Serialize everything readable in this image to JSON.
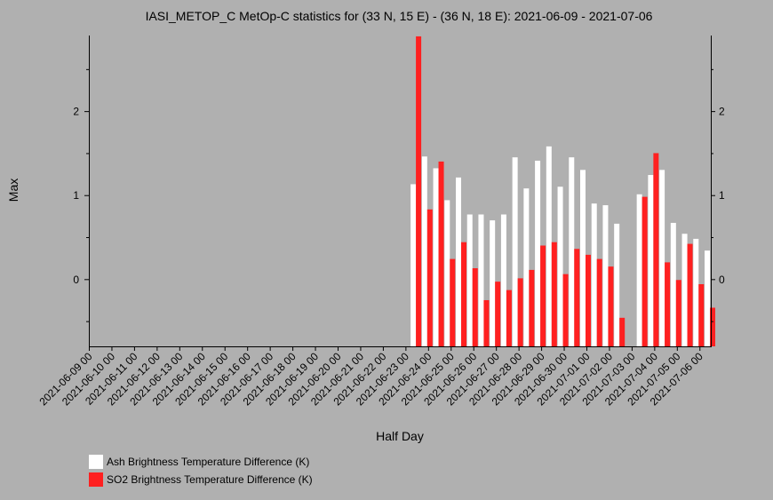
{
  "chart_data": {
    "type": "bar",
    "title": "IASI_METOP_C MetOp-C statistics for (33 N, 15 E) - (36 N, 18 E): 2021-06-09 - 2021-07-06",
    "xlabel": "Half Day",
    "ylabel": "Max",
    "ylim": [
      -0.8,
      2.9
    ],
    "yticks": [
      0,
      1,
      2
    ],
    "xlim": [
      "2021-06-09 00",
      "2021-07-06 12"
    ],
    "xticks": [
      "2021-06-09 00",
      "2021-06-10 00",
      "2021-06-11 00",
      "2021-06-12 00",
      "2021-06-13 00",
      "2021-06-14 00",
      "2021-06-15 00",
      "2021-06-16 00",
      "2021-06-17 00",
      "2021-06-18 00",
      "2021-06-19 00",
      "2021-06-20 00",
      "2021-06-21 00",
      "2021-06-22 00",
      "2021-06-23 00",
      "2021-06-24 00",
      "2021-06-25 00",
      "2021-06-26 00",
      "2021-06-27 00",
      "2021-06-28 00",
      "2021-06-29 00",
      "2021-06-30 00",
      "2021-07-01 00",
      "2021-07-02 00",
      "2021-07-03 00",
      "2021-07-04 00",
      "2021-07-05 00",
      "2021-07-06 00"
    ],
    "grid": false,
    "legend_position": "bottom-left",
    "series": [
      {
        "name": "Ash Brightness Temperature Difference (K)",
        "color": "#ffffff",
        "x": [
          "2021-06-23 12",
          "2021-06-24 00",
          "2021-06-24 12",
          "2021-06-25 00",
          "2021-06-25 12",
          "2021-06-26 00",
          "2021-06-26 12",
          "2021-06-27 00",
          "2021-06-27 12",
          "2021-06-28 00",
          "2021-06-28 12",
          "2021-06-29 00",
          "2021-06-29 12",
          "2021-06-30 00",
          "2021-06-30 12",
          "2021-07-01 00",
          "2021-07-01 12",
          "2021-07-02 00",
          "2021-07-02 12",
          "2021-07-03 00",
          "2021-07-03 12",
          "2021-07-04 00",
          "2021-07-04 12",
          "2021-07-05 00",
          "2021-07-05 12",
          "2021-07-06 00",
          "2021-07-06 12"
        ],
        "values": [
          1.13,
          1.46,
          1.32,
          0.94,
          1.21,
          0.77,
          0.77,
          0.7,
          0.77,
          1.45,
          1.08,
          1.41,
          1.58,
          1.1,
          1.45,
          1.3,
          0.9,
          0.88,
          0.66,
          null,
          1.01,
          1.24,
          1.3,
          0.67,
          0.54,
          0.48,
          0.34
        ]
      },
      {
        "name": "SO2 Brightness Temperature Difference (K)",
        "color": "#ff2020",
        "x": [
          "2021-06-23 12",
          "2021-06-24 00",
          "2021-06-24 12",
          "2021-06-25 00",
          "2021-06-25 12",
          "2021-06-26 00",
          "2021-06-26 12",
          "2021-06-27 00",
          "2021-06-27 12",
          "2021-06-28 00",
          "2021-06-28 12",
          "2021-06-29 00",
          "2021-06-29 12",
          "2021-06-30 00",
          "2021-06-30 12",
          "2021-07-01 00",
          "2021-07-01 12",
          "2021-07-02 00",
          "2021-07-02 12",
          "2021-07-03 00",
          "2021-07-03 12",
          "2021-07-04 00",
          "2021-07-04 12",
          "2021-07-05 00",
          "2021-07-05 12",
          "2021-07-06 00",
          "2021-07-06 12"
        ],
        "values": [
          2.89,
          0.83,
          1.4,
          0.24,
          0.44,
          0.13,
          -0.25,
          -0.03,
          -0.13,
          0.01,
          0.11,
          0.4,
          0.44,
          0.06,
          0.36,
          0.29,
          0.24,
          0.15,
          -0.46,
          null,
          0.98,
          1.5,
          0.2,
          -0.01,
          0.42,
          -0.06,
          -0.34
        ]
      }
    ]
  }
}
